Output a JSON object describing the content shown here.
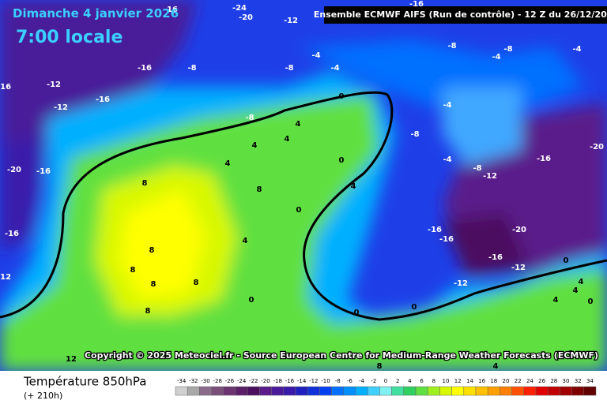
{
  "header": {
    "date": "Dimanche 4 janvier 2026",
    "time": "7:00 locale",
    "model": "Ensemble ECMWF AIFS  (Run de contrôle)  - 12 Z du 26/12/2025"
  },
  "copyright": "Copyright © 2025 Meteociel.fr - Source European Centre for Medium-Range Weather Forecasts (ECMWF)",
  "footer": {
    "title": "Température 850hPa",
    "lead": "(+ 210h)"
  },
  "colorbar": {
    "values": [
      -34,
      -32,
      -30,
      -28,
      -26,
      -24,
      -22,
      -20,
      -18,
      -16,
      -14,
      -12,
      -10,
      -8,
      -6,
      -4,
      -2,
      0,
      2,
      4,
      6,
      8,
      10,
      12,
      14,
      16,
      18,
      20,
      22,
      24,
      26,
      28,
      30,
      32,
      34
    ],
    "colors": [
      "#d0d0d0",
      "#a8a8a8",
      "#8c6b8c",
      "#7a4f7a",
      "#6b3370",
      "#5a1f66",
      "#4b0f5e",
      "#5a1a8a",
      "#4a1a9a",
      "#3a1aaa",
      "#2020c0",
      "#1030d8",
      "#0040f0",
      "#0070ff",
      "#0090ff",
      "#00b0ff",
      "#40d0ff",
      "#80f0f0",
      "#40e0a0",
      "#30d060",
      "#60e040",
      "#a0f020",
      "#d8f800",
      "#ffff00",
      "#ffe000",
      "#ffc000",
      "#ffa000",
      "#ff8000",
      "#ff5000",
      "#ff2000",
      "#e00000",
      "#c00000",
      "#a00000",
      "#800000",
      "#600000"
    ]
  },
  "contour_labels": [
    -24,
    -20,
    -16,
    -16,
    -12,
    -8,
    -8,
    -4,
    -4,
    -4,
    -4,
    -16,
    -8,
    -8,
    -12,
    -16,
    -12,
    -16,
    0,
    -4,
    -8,
    4,
    4,
    4,
    -8,
    -20,
    -16,
    -20,
    -16,
    4,
    0,
    -4,
    -8,
    -12,
    8,
    8,
    4,
    0,
    -16,
    -16,
    -16,
    -20,
    4,
    8,
    -16,
    0,
    -12,
    -12,
    8,
    8,
    8,
    -12,
    4,
    0,
    4,
    4,
    0,
    8,
    0,
    0,
    12,
    8,
    4,
    8
  ]
}
